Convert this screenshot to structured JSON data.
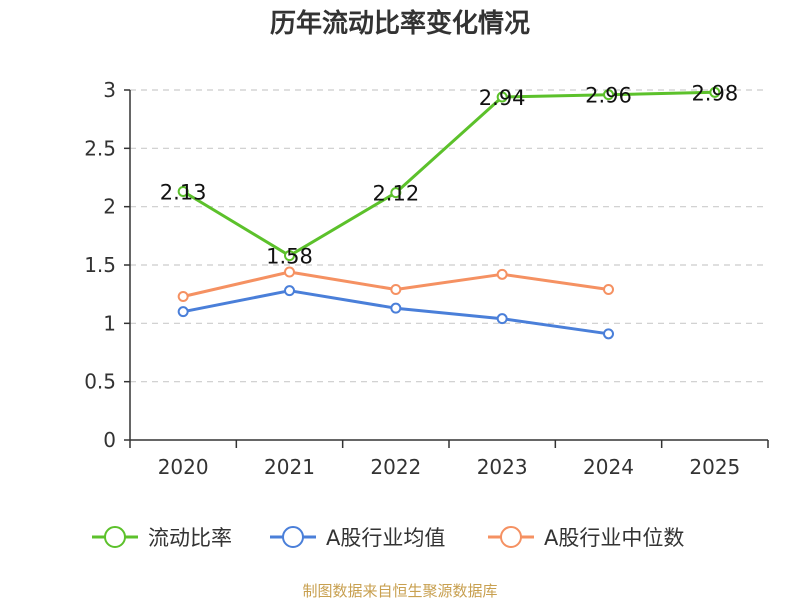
{
  "chart_data": {
    "type": "line",
    "title": "历年流动比率变化情况",
    "categories": [
      "2020",
      "2021",
      "2022",
      "2023",
      "2024",
      "2025"
    ],
    "ylim": [
      0,
      3
    ],
    "yticks": [
      0,
      0.5,
      1,
      1.5,
      2,
      2.5,
      3
    ],
    "ytick_labels": [
      "0",
      "0.5",
      "1",
      "1.5",
      "2",
      "2.5",
      "3"
    ],
    "grid": true,
    "legend_position": "bottom",
    "series": [
      {
        "name": "流动比率",
        "color": "#5cc12b",
        "values": [
          2.13,
          1.58,
          2.12,
          2.94,
          2.96,
          2.98
        ],
        "value_labels": [
          "2.13",
          "1.58",
          "2.12",
          "2.94",
          "2.96",
          "2.98"
        ]
      },
      {
        "name": "A股行业均值",
        "color": "#4a7fd9",
        "values": [
          1.1,
          1.28,
          1.13,
          1.04,
          0.91,
          null
        ]
      },
      {
        "name": "A股行业中位数",
        "color": "#f59162",
        "values": [
          1.23,
          1.44,
          1.29,
          1.42,
          1.29,
          null
        ]
      }
    ]
  },
  "footer": {
    "source": "制图数据来自恒生聚源数据库"
  }
}
